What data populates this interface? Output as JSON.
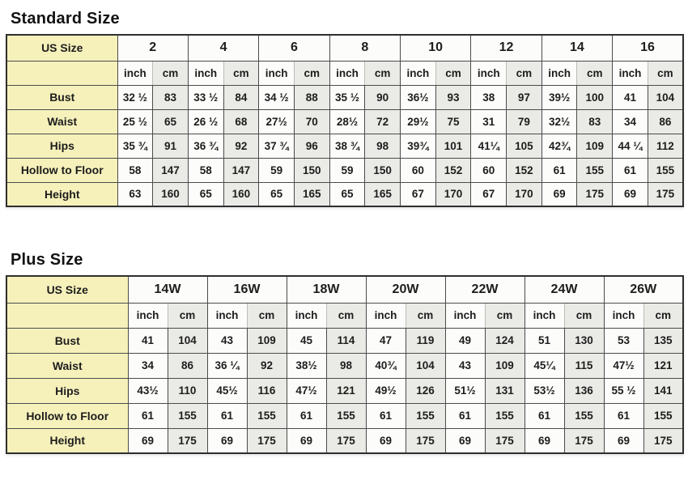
{
  "colors": {
    "label_bg": "#f6f1bb",
    "inch_bg": "#fcfcfb",
    "cm_bg": "#eaeae6",
    "border_inner": "#4b4b4b",
    "border_outer": "#2f2f2f",
    "text": "#1d1d1d",
    "page_bg": "#ffffff"
  },
  "chart_data": [
    {
      "type": "table",
      "title": "Standard Size",
      "corner_label": "US Size",
      "unit_labels": [
        "inch",
        "cm"
      ],
      "sizes": [
        "2",
        "4",
        "6",
        "8",
        "10",
        "12",
        "14",
        "16"
      ],
      "rows": [
        {
          "label": "Bust",
          "values": [
            [
              "32 ½",
              "83"
            ],
            [
              "33 ½",
              "84"
            ],
            [
              "34 ½",
              "88"
            ],
            [
              "35 ½",
              "90"
            ],
            [
              "36½",
              "93"
            ],
            [
              "38",
              "97"
            ],
            [
              "39½",
              "100"
            ],
            [
              "41",
              "104"
            ]
          ]
        },
        {
          "label": "Waist",
          "values": [
            [
              "25 ½",
              "65"
            ],
            [
              "26 ½",
              "68"
            ],
            [
              "27½",
              "70"
            ],
            [
              "28½",
              "72"
            ],
            [
              "29½",
              "75"
            ],
            [
              "31",
              "79"
            ],
            [
              "32½",
              "83"
            ],
            [
              "34",
              "86"
            ]
          ]
        },
        {
          "label": "Hips",
          "values": [
            [
              "35 ¾",
              "91"
            ],
            [
              "36 ¾",
              "92"
            ],
            [
              "37 ¾",
              "96"
            ],
            [
              "38 ¾",
              "98"
            ],
            [
              "39¾",
              "101"
            ],
            [
              "41¼",
              "105"
            ],
            [
              "42¾",
              "109"
            ],
            [
              "44 ¼",
              "112"
            ]
          ]
        },
        {
          "label": "Hollow to Floor",
          "values": [
            [
              "58",
              "147"
            ],
            [
              "58",
              "147"
            ],
            [
              "59",
              "150"
            ],
            [
              "59",
              "150"
            ],
            [
              "60",
              "152"
            ],
            [
              "60",
              "152"
            ],
            [
              "61",
              "155"
            ],
            [
              "61",
              "155"
            ]
          ]
        },
        {
          "label": "Height",
          "values": [
            [
              "63",
              "160"
            ],
            [
              "65",
              "160"
            ],
            [
              "65",
              "165"
            ],
            [
              "65",
              "165"
            ],
            [
              "67",
              "170"
            ],
            [
              "67",
              "170"
            ],
            [
              "69",
              "175"
            ],
            [
              "69",
              "175"
            ]
          ]
        }
      ]
    },
    {
      "type": "table",
      "title": "Plus Size",
      "corner_label": "US Size",
      "unit_labels": [
        "inch",
        "cm"
      ],
      "sizes": [
        "14W",
        "16W",
        "18W",
        "20W",
        "22W",
        "24W",
        "26W"
      ],
      "rows": [
        {
          "label": "Bust",
          "values": [
            [
              "41",
              "104"
            ],
            [
              "43",
              "109"
            ],
            [
              "45",
              "114"
            ],
            [
              "47",
              "119"
            ],
            [
              "49",
              "124"
            ],
            [
              "51",
              "130"
            ],
            [
              "53",
              "135"
            ]
          ]
        },
        {
          "label": "Waist",
          "values": [
            [
              "34",
              "86"
            ],
            [
              "36 ¼",
              "92"
            ],
            [
              "38½",
              "98"
            ],
            [
              "40¾",
              "104"
            ],
            [
              "43",
              "109"
            ],
            [
              "45¼",
              "115"
            ],
            [
              "47½",
              "121"
            ]
          ]
        },
        {
          "label": "Hips",
          "values": [
            [
              "43½",
              "110"
            ],
            [
              "45½",
              "116"
            ],
            [
              "47½",
              "121"
            ],
            [
              "49½",
              "126"
            ],
            [
              "51½",
              "131"
            ],
            [
              "53½",
              "136"
            ],
            [
              "55 ½",
              "141"
            ]
          ]
        },
        {
          "label": "Hollow to Floor",
          "values": [
            [
              "61",
              "155"
            ],
            [
              "61",
              "155"
            ],
            [
              "61",
              "155"
            ],
            [
              "61",
              "155"
            ],
            [
              "61",
              "155"
            ],
            [
              "61",
              "155"
            ],
            [
              "61",
              "155"
            ]
          ]
        },
        {
          "label": "Height",
          "values": [
            [
              "69",
              "175"
            ],
            [
              "69",
              "175"
            ],
            [
              "69",
              "175"
            ],
            [
              "69",
              "175"
            ],
            [
              "69",
              "175"
            ],
            [
              "69",
              "175"
            ],
            [
              "69",
              "175"
            ]
          ]
        }
      ]
    }
  ]
}
